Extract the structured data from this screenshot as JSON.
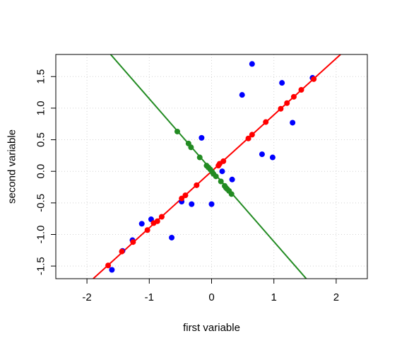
{
  "chart_data": {
    "type": "scatter",
    "title": "",
    "xlabel": "first variable",
    "ylabel": "second variable",
    "xlim": [
      -2.5,
      2.5
    ],
    "ylim": [
      -1.7,
      1.85
    ],
    "xticks": [
      -2,
      -1,
      0,
      1,
      2
    ],
    "yticks": [
      -1.5,
      -1.0,
      -0.5,
      0.0,
      0.5,
      1.0,
      1.5
    ],
    "xtick_labels": [
      "-2",
      "-1",
      "0",
      "1",
      "2"
    ],
    "ytick_labels": [
      "-1.5",
      "-1.0",
      "-0.5",
      "0.0",
      "0.5",
      "1.0",
      "1.5"
    ],
    "grid": true,
    "grid_style": "dotted",
    "colors": {
      "data": "#0000ff",
      "projection_first": "#ff0000",
      "projection_second": "#228b22"
    },
    "series": [
      {
        "kind": "points",
        "color": "#0000ff",
        "points": [
          [
            -1.6,
            -1.56
          ],
          [
            -1.43,
            -1.26
          ],
          [
            -1.27,
            -1.09
          ],
          [
            -1.12,
            -0.83
          ],
          [
            -0.97,
            -0.76
          ],
          [
            -0.64,
            -1.05
          ],
          [
            -0.48,
            -0.48
          ],
          [
            -0.32,
            -0.52
          ],
          [
            -0.16,
            0.53
          ],
          [
            0.0,
            -0.52
          ],
          [
            0.17,
            0.0
          ],
          [
            0.33,
            -0.13
          ],
          [
            0.49,
            1.21
          ],
          [
            0.65,
            1.7
          ],
          [
            0.81,
            0.27
          ],
          [
            0.98,
            0.22
          ],
          [
            1.13,
            1.4
          ],
          [
            1.3,
            0.77
          ],
          [
            1.62,
            1.48
          ]
        ]
      },
      {
        "kind": "points",
        "color": "#ff0000",
        "points": [
          [
            -1.66,
            -1.49
          ],
          [
            -1.44,
            -1.27
          ],
          [
            -1.26,
            -1.12
          ],
          [
            -1.03,
            -0.93
          ],
          [
            -0.93,
            -0.82
          ],
          [
            -0.87,
            -0.79
          ],
          [
            -0.8,
            -0.72
          ],
          [
            -0.48,
            -0.43
          ],
          [
            -0.42,
            -0.38
          ],
          [
            -0.24,
            -0.22
          ],
          [
            0.11,
            0.09
          ],
          [
            0.13,
            0.12
          ],
          [
            0.19,
            0.16
          ],
          [
            0.59,
            0.52
          ],
          [
            0.65,
            0.58
          ],
          [
            0.87,
            0.78
          ],
          [
            1.11,
            0.99
          ],
          [
            1.21,
            1.08
          ],
          [
            1.32,
            1.18
          ],
          [
            1.44,
            1.29
          ],
          [
            1.64,
            1.46
          ]
        ]
      },
      {
        "kind": "points",
        "color": "#228b22",
        "points": [
          [
            -0.55,
            0.63
          ],
          [
            -0.37,
            0.44
          ],
          [
            -0.33,
            0.38
          ],
          [
            -0.19,
            0.22
          ],
          [
            -0.08,
            0.09
          ],
          [
            -0.05,
            0.06
          ],
          [
            -0.02,
            0.03
          ],
          [
            0.01,
            -0.01
          ],
          [
            0.03,
            -0.04
          ],
          [
            0.07,
            -0.08
          ],
          [
            0.15,
            -0.16
          ],
          [
            0.21,
            -0.23
          ],
          [
            0.23,
            -0.26
          ],
          [
            0.25,
            -0.28
          ],
          [
            0.28,
            -0.31
          ],
          [
            0.32,
            -0.36
          ]
        ]
      },
      {
        "kind": "line",
        "color": "#ff0000",
        "from": [
          -1.9,
          -1.7
        ],
        "to": [
          2.07,
          1.85
        ]
      },
      {
        "kind": "line",
        "color": "#228b22",
        "from": [
          -1.62,
          1.85
        ],
        "to": [
          1.52,
          -1.7
        ]
      }
    ]
  }
}
